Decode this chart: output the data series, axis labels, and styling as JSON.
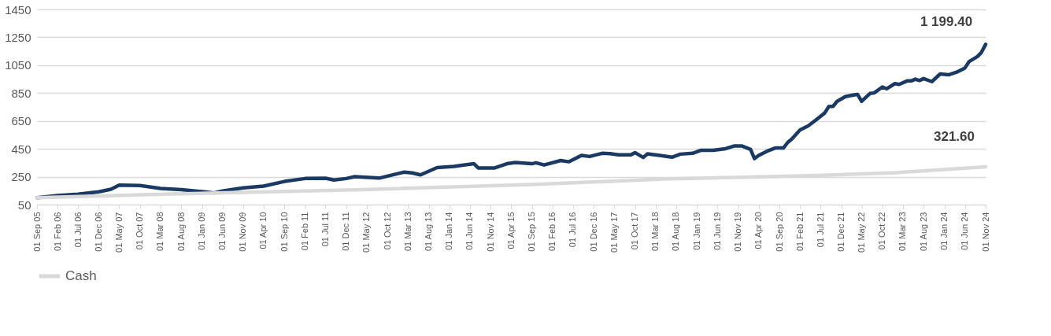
{
  "chart_data": {
    "type": "line",
    "series": [
      {
        "color": "#1a3a63",
        "x": [
          "2005-09-01",
          "2006-02-01",
          "2006-07-01",
          "2006-12-01",
          "2007-03-01",
          "2007-05-01",
          "2007-10-01",
          "2008-03-01",
          "2008-08-01",
          "2009-01-01",
          "2009-04-01",
          "2009-06-01",
          "2009-11-01",
          "2010-04-01",
          "2010-09-01",
          "2011-02-01",
          "2011-07-01",
          "2011-09-01",
          "2011-12-01",
          "2012-02-01",
          "2012-08-01",
          "2013-02-01",
          "2013-04-01",
          "2013-06-01",
          "2013-10-01",
          "2014-02-01",
          "2014-07-01",
          "2014-08-01",
          "2014-12-01",
          "2015-03-01",
          "2015-05-01",
          "2015-09-01",
          "2015-10-01",
          "2015-12-01",
          "2016-04-01",
          "2016-06-01",
          "2016-09-01",
          "2016-11-01",
          "2017-02-01",
          "2017-04-01",
          "2017-06-01",
          "2017-09-01",
          "2017-10-01",
          "2017-12-01",
          "2018-01-01",
          "2018-04-01",
          "2018-07-01",
          "2018-09-01",
          "2018-12-01",
          "2019-02-01",
          "2019-05-01",
          "2019-08-01",
          "2019-10-01",
          "2019-12-01",
          "2020-02-01",
          "2020-03-01",
          "2020-04-01",
          "2020-06-01",
          "2020-08-01",
          "2020-10-01",
          "2020-11-01",
          "2020-12-01",
          "2021-02-01",
          "2021-04-01",
          "2021-06-01",
          "2021-08-01",
          "2021-09-01",
          "2021-10-01",
          "2021-11-01",
          "2022-01-01",
          "2022-03-01",
          "2022-04-01",
          "2022-05-01",
          "2022-07-01",
          "2022-08-01",
          "2022-10-01",
          "2022-11-01",
          "2023-01-01",
          "2023-02-01",
          "2023-04-01",
          "2023-05-01",
          "2023-06-01",
          "2023-07-01",
          "2023-08-01",
          "2023-10-01",
          "2023-12-01",
          "2024-02-01",
          "2024-04-01",
          "2024-06-01",
          "2024-07-01",
          "2024-09-01",
          "2024-10-01",
          "2024-11-01"
        ],
        "values": [
          100,
          115,
          125,
          142,
          160,
          190,
          187,
          166,
          157,
          143,
          134,
          147,
          170,
          183,
          216,
          237,
          239,
          226,
          237,
          250,
          240,
          283,
          277,
          263,
          315,
          324,
          343,
          313,
          313,
          343,
          352,
          343,
          350,
          334,
          366,
          357,
          403,
          395,
          418,
          416,
          407,
          407,
          423,
          388,
          414,
          403,
          390,
          412,
          418,
          440,
          440,
          451,
          470,
          470,
          446,
          380,
          403,
          433,
          456,
          456,
          496,
          520,
          586,
          614,
          660,
          707,
          754,
          754,
          791,
          825,
          836,
          840,
          791,
          847,
          851,
          894,
          881,
          918,
          912,
          937,
          937,
          950,
          940,
          954,
          932,
          987,
          981,
          1000,
          1030,
          1075,
          1112,
          1142,
          1199.4
        ]
      },
      {
        "name": "Cash",
        "color": "#d9d9d9",
        "x": [
          "2005-09-01",
          "2008-04-01",
          "2012-02-01",
          "2015-09-01",
          "2018-05-01",
          "2021-06-01",
          "2023-01-01",
          "2024-11-01"
        ],
        "values": [
          100,
          125,
          156,
          194,
          233,
          259,
          278,
          321.6
        ]
      }
    ],
    "xlim": [
      "2005-09-01",
      "2024-11-01"
    ],
    "xticks": [
      {
        "value": "2005-09-01",
        "label": "01 Sep 05"
      },
      {
        "value": "2006-02-01",
        "label": "01 Feb 06"
      },
      {
        "value": "2006-07-01",
        "label": "01 Jul 06"
      },
      {
        "value": "2006-12-01",
        "label": "01 Dec 06"
      },
      {
        "value": "2007-05-01",
        "label": "01 May 07"
      },
      {
        "value": "2007-10-01",
        "label": "01 Oct 07"
      },
      {
        "value": "2008-03-01",
        "label": "01 Mar 08"
      },
      {
        "value": "2008-08-01",
        "label": "01 Aug 08"
      },
      {
        "value": "2009-01-01",
        "label": "01 Jan 09"
      },
      {
        "value": "2009-06-01",
        "label": "01 Jun 09"
      },
      {
        "value": "2009-11-01",
        "label": "01 Nov 09"
      },
      {
        "value": "2010-04-01",
        "label": "01 Apr 10"
      },
      {
        "value": "2010-09-01",
        "label": "01 Sep 10"
      },
      {
        "value": "2011-02-01",
        "label": "01 Feb 11"
      },
      {
        "value": "2011-07-01",
        "label": "01 Jul 11"
      },
      {
        "value": "2011-12-01",
        "label": "01 Dec 11"
      },
      {
        "value": "2012-05-01",
        "label": "01 May 12"
      },
      {
        "value": "2012-10-01",
        "label": "01 Oct 12"
      },
      {
        "value": "2013-03-01",
        "label": "01 Mar 13"
      },
      {
        "value": "2013-08-01",
        "label": "01 Aug 13"
      },
      {
        "value": "2014-01-01",
        "label": "01 Jan 14"
      },
      {
        "value": "2014-06-01",
        "label": "01 Jun 14"
      },
      {
        "value": "2014-11-01",
        "label": "01 Nov 14"
      },
      {
        "value": "2015-04-01",
        "label": "01 Apr 15"
      },
      {
        "value": "2015-09-01",
        "label": "01 Sep 15"
      },
      {
        "value": "2016-02-01",
        "label": "01 Feb 16"
      },
      {
        "value": "2016-07-01",
        "label": "01 Jul 16"
      },
      {
        "value": "2016-12-01",
        "label": "01 Dec 16"
      },
      {
        "value": "2017-05-01",
        "label": "01 May 17"
      },
      {
        "value": "2017-10-01",
        "label": "01 Oct 17"
      },
      {
        "value": "2018-03-01",
        "label": "01 Mar 18"
      },
      {
        "value": "2018-08-01",
        "label": "01 Aug 18"
      },
      {
        "value": "2019-01-01",
        "label": "01 Jan 19"
      },
      {
        "value": "2019-06-01",
        "label": "01 Jun 19"
      },
      {
        "value": "2019-11-01",
        "label": "01 Nov 19"
      },
      {
        "value": "2020-04-01",
        "label": "01 Apr 20"
      },
      {
        "value": "2020-09-01",
        "label": "01 Sep 20"
      },
      {
        "value": "2021-02-01",
        "label": "01 Feb 21"
      },
      {
        "value": "2021-07-01",
        "label": "01 Jul 21"
      },
      {
        "value": "2021-12-01",
        "label": "01 Dec 21"
      },
      {
        "value": "2022-05-01",
        "label": "01 May 22"
      },
      {
        "value": "2022-10-01",
        "label": "01 Oct 22"
      },
      {
        "value": "2023-03-01",
        "label": "01 Mar 23"
      },
      {
        "value": "2023-08-01",
        "label": "01 Aug 23"
      },
      {
        "value": "2024-01-01",
        "label": "01 Jan 24"
      },
      {
        "value": "2024-06-01",
        "label": "01 Jun 24"
      },
      {
        "value": "2024-11-01",
        "label": "01 Nov 24"
      }
    ],
    "ylim": [
      50,
      1450
    ],
    "yticks": [
      50,
      250,
      450,
      650,
      850,
      1050,
      1250,
      1450
    ],
    "grid": "y",
    "legend": "bottom",
    "marker": "none",
    "line_style": "solid",
    "annotations": [
      {
        "text": "1 199.40",
        "x": "2024-11-01",
        "y": 1199.4
      },
      {
        "text": "321.60",
        "x": "2024-11-01",
        "y": 321.6
      }
    ]
  }
}
